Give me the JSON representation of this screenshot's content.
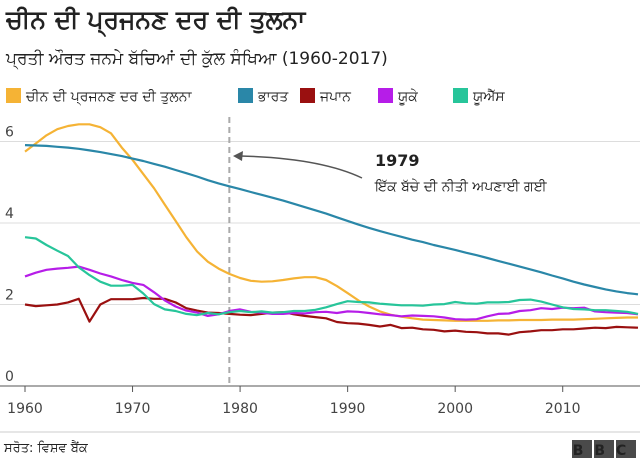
{
  "chart_data": {
    "type": "line",
    "title": "ਚੀਨ ਦੀ ਪ੍ਰਜਨਣ ਦਰ ਦੀ ਤੁਲਨਾ",
    "subtitle": "ਪ੍ਰਤੀ ਔਰਤ ਜਨਮੇ ਬੱਚਿਆਂ ਦੀ ਕੁੱਲ ਸੰਖਿਆ (1960-2017)",
    "source": "ਸਰੋਤ: ਵਿਸ਼ਵ ਬੈਂਕ",
    "logo": "BBC",
    "annotation": {
      "x": 1979,
      "text": "ਇੱਕ ਬੱਚੇ ਦੀ ਨੀਤੀ ਅਪਣਾਈ ਗਈ"
    },
    "x": [
      1960,
      1961,
      1962,
      1963,
      1964,
      1965,
      1966,
      1967,
      1968,
      1969,
      1970,
      1971,
      1972,
      1973,
      1974,
      1975,
      1976,
      1977,
      1978,
      1979,
      1980,
      1981,
      1982,
      1983,
      1984,
      1985,
      1986,
      1987,
      1988,
      1989,
      1990,
      1991,
      1992,
      1993,
      1994,
      1995,
      1996,
      1997,
      1998,
      1999,
      2000,
      2001,
      2002,
      2003,
      2004,
      2005,
      2006,
      2007,
      2008,
      2009,
      2010,
      2011,
      2012,
      2013,
      2014,
      2015,
      2016,
      2017
    ],
    "xlim": [
      1960,
      2017
    ],
    "xticks": [
      1960,
      1970,
      1980,
      1990,
      2000,
      2010
    ],
    "ylim": [
      0,
      6.6
    ],
    "yticks": [
      0,
      2,
      4,
      6
    ],
    "grid": true,
    "series": [
      {
        "name": "ਚੀਨ ਦੀ ਪ੍ਰਜਨਣ ਦਰ ਦੀ ਤੁਲਨਾ",
        "color": "#f5b335",
        "values": [
          5.75,
          5.95,
          6.15,
          6.3,
          6.38,
          6.42,
          6.42,
          6.35,
          6.2,
          5.85,
          5.55,
          5.2,
          4.85,
          4.45,
          4.05,
          3.65,
          3.3,
          3.05,
          2.88,
          2.75,
          2.65,
          2.58,
          2.56,
          2.57,
          2.6,
          2.64,
          2.67,
          2.67,
          2.6,
          2.45,
          2.28,
          2.1,
          1.95,
          1.83,
          1.75,
          1.7,
          1.66,
          1.63,
          1.62,
          1.61,
          1.6,
          1.6,
          1.6,
          1.6,
          1.61,
          1.61,
          1.62,
          1.62,
          1.62,
          1.63,
          1.63,
          1.63,
          1.64,
          1.65,
          1.66,
          1.67,
          1.68,
          1.68
        ]
      },
      {
        "name": "ਭਾਰਤ",
        "color": "#2a87a8",
        "values": [
          5.91,
          5.9,
          5.89,
          5.87,
          5.85,
          5.82,
          5.78,
          5.74,
          5.69,
          5.64,
          5.58,
          5.52,
          5.45,
          5.38,
          5.3,
          5.22,
          5.14,
          5.05,
          4.97,
          4.9,
          4.83,
          4.76,
          4.69,
          4.62,
          4.55,
          4.47,
          4.39,
          4.31,
          4.23,
          4.14,
          4.05,
          3.96,
          3.88,
          3.8,
          3.73,
          3.66,
          3.59,
          3.53,
          3.46,
          3.4,
          3.34,
          3.27,
          3.21,
          3.14,
          3.07,
          3.0,
          2.93,
          2.86,
          2.79,
          2.71,
          2.64,
          2.56,
          2.49,
          2.43,
          2.37,
          2.32,
          2.28,
          2.25
        ]
      },
      {
        "name": "ਜਪਾਨ",
        "color": "#9a1010",
        "values": [
          2.0,
          1.96,
          1.98,
          2.0,
          2.05,
          2.14,
          1.58,
          2.0,
          2.13,
          2.13,
          2.13,
          2.16,
          2.14,
          2.14,
          2.05,
          1.91,
          1.85,
          1.8,
          1.79,
          1.77,
          1.75,
          1.74,
          1.77,
          1.8,
          1.81,
          1.76,
          1.72,
          1.69,
          1.66,
          1.57,
          1.54,
          1.53,
          1.5,
          1.46,
          1.5,
          1.42,
          1.43,
          1.39,
          1.38,
          1.34,
          1.36,
          1.33,
          1.32,
          1.29,
          1.29,
          1.26,
          1.32,
          1.34,
          1.37,
          1.37,
          1.39,
          1.39,
          1.41,
          1.43,
          1.42,
          1.45,
          1.44,
          1.43
        ]
      },
      {
        "name": "ਯੂਕੇ",
        "color": "#b61de8",
        "values": [
          2.69,
          2.78,
          2.85,
          2.88,
          2.9,
          2.93,
          2.85,
          2.76,
          2.69,
          2.6,
          2.53,
          2.48,
          2.3,
          2.1,
          1.95,
          1.85,
          1.8,
          1.72,
          1.76,
          1.84,
          1.88,
          1.82,
          1.8,
          1.77,
          1.77,
          1.79,
          1.78,
          1.81,
          1.82,
          1.79,
          1.83,
          1.82,
          1.79,
          1.76,
          1.74,
          1.71,
          1.73,
          1.72,
          1.71,
          1.68,
          1.64,
          1.63,
          1.64,
          1.71,
          1.77,
          1.78,
          1.84,
          1.86,
          1.91,
          1.89,
          1.92,
          1.91,
          1.92,
          1.83,
          1.81,
          1.8,
          1.79,
          1.76
        ]
      },
      {
        "name": "ਯੂਐੱਸ",
        "color": "#27c59a",
        "values": [
          3.65,
          3.62,
          3.46,
          3.32,
          3.19,
          2.91,
          2.72,
          2.56,
          2.46,
          2.46,
          2.48,
          2.27,
          2.01,
          1.88,
          1.84,
          1.77,
          1.74,
          1.79,
          1.76,
          1.81,
          1.84,
          1.81,
          1.83,
          1.8,
          1.81,
          1.84,
          1.84,
          1.87,
          1.93,
          2.01,
          2.08,
          2.06,
          2.05,
          2.02,
          2.0,
          1.98,
          1.98,
          1.97,
          2.0,
          2.01,
          2.06,
          2.03,
          2.02,
          2.05,
          2.05,
          2.06,
          2.11,
          2.12,
          2.07,
          2.0,
          1.93,
          1.89,
          1.88,
          1.86,
          1.86,
          1.84,
          1.82,
          1.77
        ]
      }
    ]
  }
}
